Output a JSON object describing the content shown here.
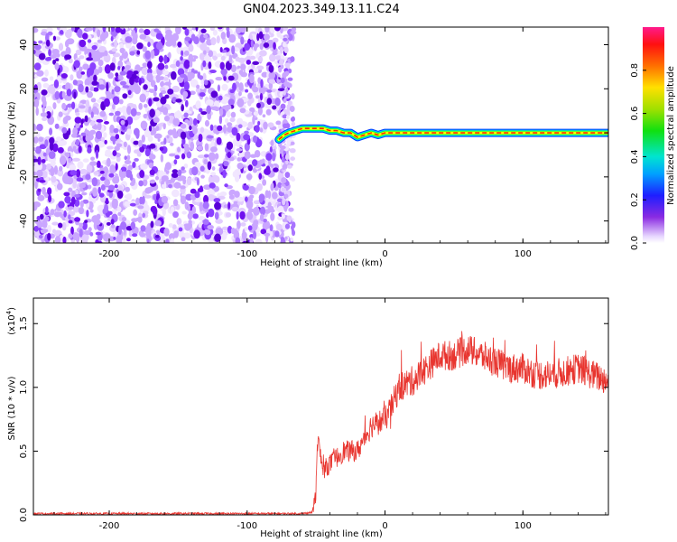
{
  "title": "GN04.2023.349.13.11.C24",
  "chart_data": [
    {
      "type": "heatmap",
      "name": "spectrogram",
      "xlabel": "Height of straight line (km)",
      "ylabel": "Frequency (Hz)",
      "xlim": [
        -255,
        162
      ],
      "ylim": [
        -50,
        48
      ],
      "xticks": [
        -200,
        -100,
        0,
        100
      ],
      "xtick_labels": [
        "-200",
        "-100",
        "0",
        "100"
      ],
      "yticks": [
        -40,
        -20,
        0,
        20,
        40
      ],
      "ytick_labels": [
        "-40",
        "-20",
        "0",
        "20",
        "40"
      ],
      "noise_region_x": [
        -255,
        -70
      ],
      "signal_track": {
        "x": [
          -77,
          -73,
          -70,
          -65,
          -60,
          -55,
          -50,
          -45,
          -40,
          -35,
          -30,
          -25,
          -20,
          -15,
          -10,
          -5,
          0,
          10,
          20,
          40,
          60,
          80,
          100,
          120,
          140,
          162
        ],
        "freq_hz": [
          -3,
          -1,
          0,
          1,
          2,
          2,
          2,
          2,
          1,
          1,
          0,
          0,
          -2,
          -1,
          0,
          -1,
          0,
          0,
          0,
          0,
          0,
          0,
          0,
          0,
          0,
          0
        ]
      },
      "colorbar": {
        "label": "Normalized spectral amplitude",
        "range": [
          0,
          1
        ],
        "ticks": [
          0.0,
          0.2,
          0.4,
          0.6,
          0.8
        ],
        "tick_labels": [
          "0.0",
          "0.2",
          "0.4",
          "0.6",
          "0.8"
        ]
      }
    },
    {
      "type": "line",
      "name": "snr",
      "xlabel": "Height of straight line (km)",
      "ylabel": "SNR (10 * v/v)",
      "multiplier_label": "(x10",
      "multiplier_exp": "4",
      "xlim": [
        -255,
        162
      ],
      "ylim": [
        0,
        1.7
      ],
      "xticks": [
        -200,
        -100,
        0,
        100
      ],
      "xtick_labels": [
        "-200",
        "-100",
        "0",
        "100"
      ],
      "yticks": [
        0.0,
        0.5,
        1.0,
        1.5
      ],
      "ytick_labels": [
        "0.0",
        "0.5",
        "1.0",
        "1.5"
      ],
      "series_color": "#e8352f",
      "x": [
        -255,
        -230,
        -200,
        -150,
        -100,
        -60,
        -53,
        -50,
        -49,
        -45,
        -40,
        -30,
        -20,
        -10,
        0,
        5,
        10,
        20,
        30,
        40,
        50,
        60,
        70,
        80,
        90,
        100,
        110,
        120,
        130,
        140,
        150,
        162
      ],
      "y": [
        0.01,
        0.01,
        0.01,
        0.01,
        0.01,
        0.01,
        0.02,
        0.15,
        0.6,
        0.35,
        0.4,
        0.5,
        0.5,
        0.7,
        0.75,
        0.85,
        1.0,
        1.05,
        1.15,
        1.25,
        1.25,
        1.3,
        1.25,
        1.2,
        1.15,
        1.15,
        1.1,
        1.1,
        1.12,
        1.15,
        1.1,
        1.05
      ],
      "noise_amplitude": 0.12
    }
  ],
  "colors": {
    "noise": "#7a1df0",
    "track_core": "#ff2b00",
    "track_mid": "#ffff00",
    "track_edge": "#00ff40",
    "track_outer": "#003bff",
    "line": "#e8352f"
  }
}
